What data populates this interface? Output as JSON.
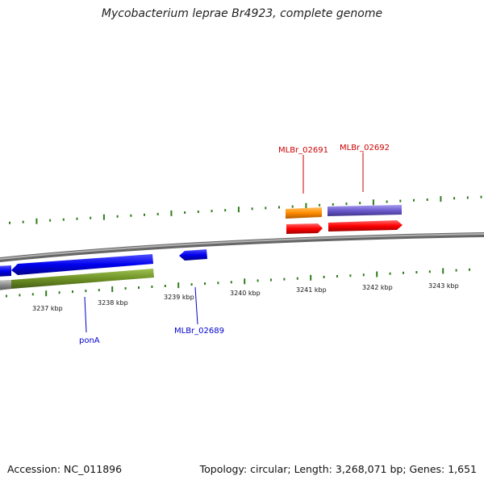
{
  "title": "Mycobacterium leprae Br4923, complete genome",
  "footer": {
    "accession": "Accession: NC_011896",
    "summary": "Topology: circular; Length: 3,268,071 bp; Genes: 1,651"
  },
  "colors": {
    "backbone": "#8a8a8a",
    "tick": "#2e7d1a",
    "gene_forward": "#ff0000",
    "gene_reverse": "#0000ee",
    "cds_orange": "#ff8c00",
    "cds_purple": "#6a5acd",
    "cds_green": "#6b8e23",
    "label_red": "#cc0000",
    "label_blue": "#0000cc"
  },
  "scale_labels": [
    "3237 kbp",
    "3238 kbp",
    "3239 kbp",
    "3240 kbp",
    "3241 kbp",
    "3242 kbp",
    "3243 kbp"
  ],
  "gene_labels": [
    "MLBr_02691",
    "MLBr_02692",
    "ponA",
    "MLBr_02689"
  ]
}
